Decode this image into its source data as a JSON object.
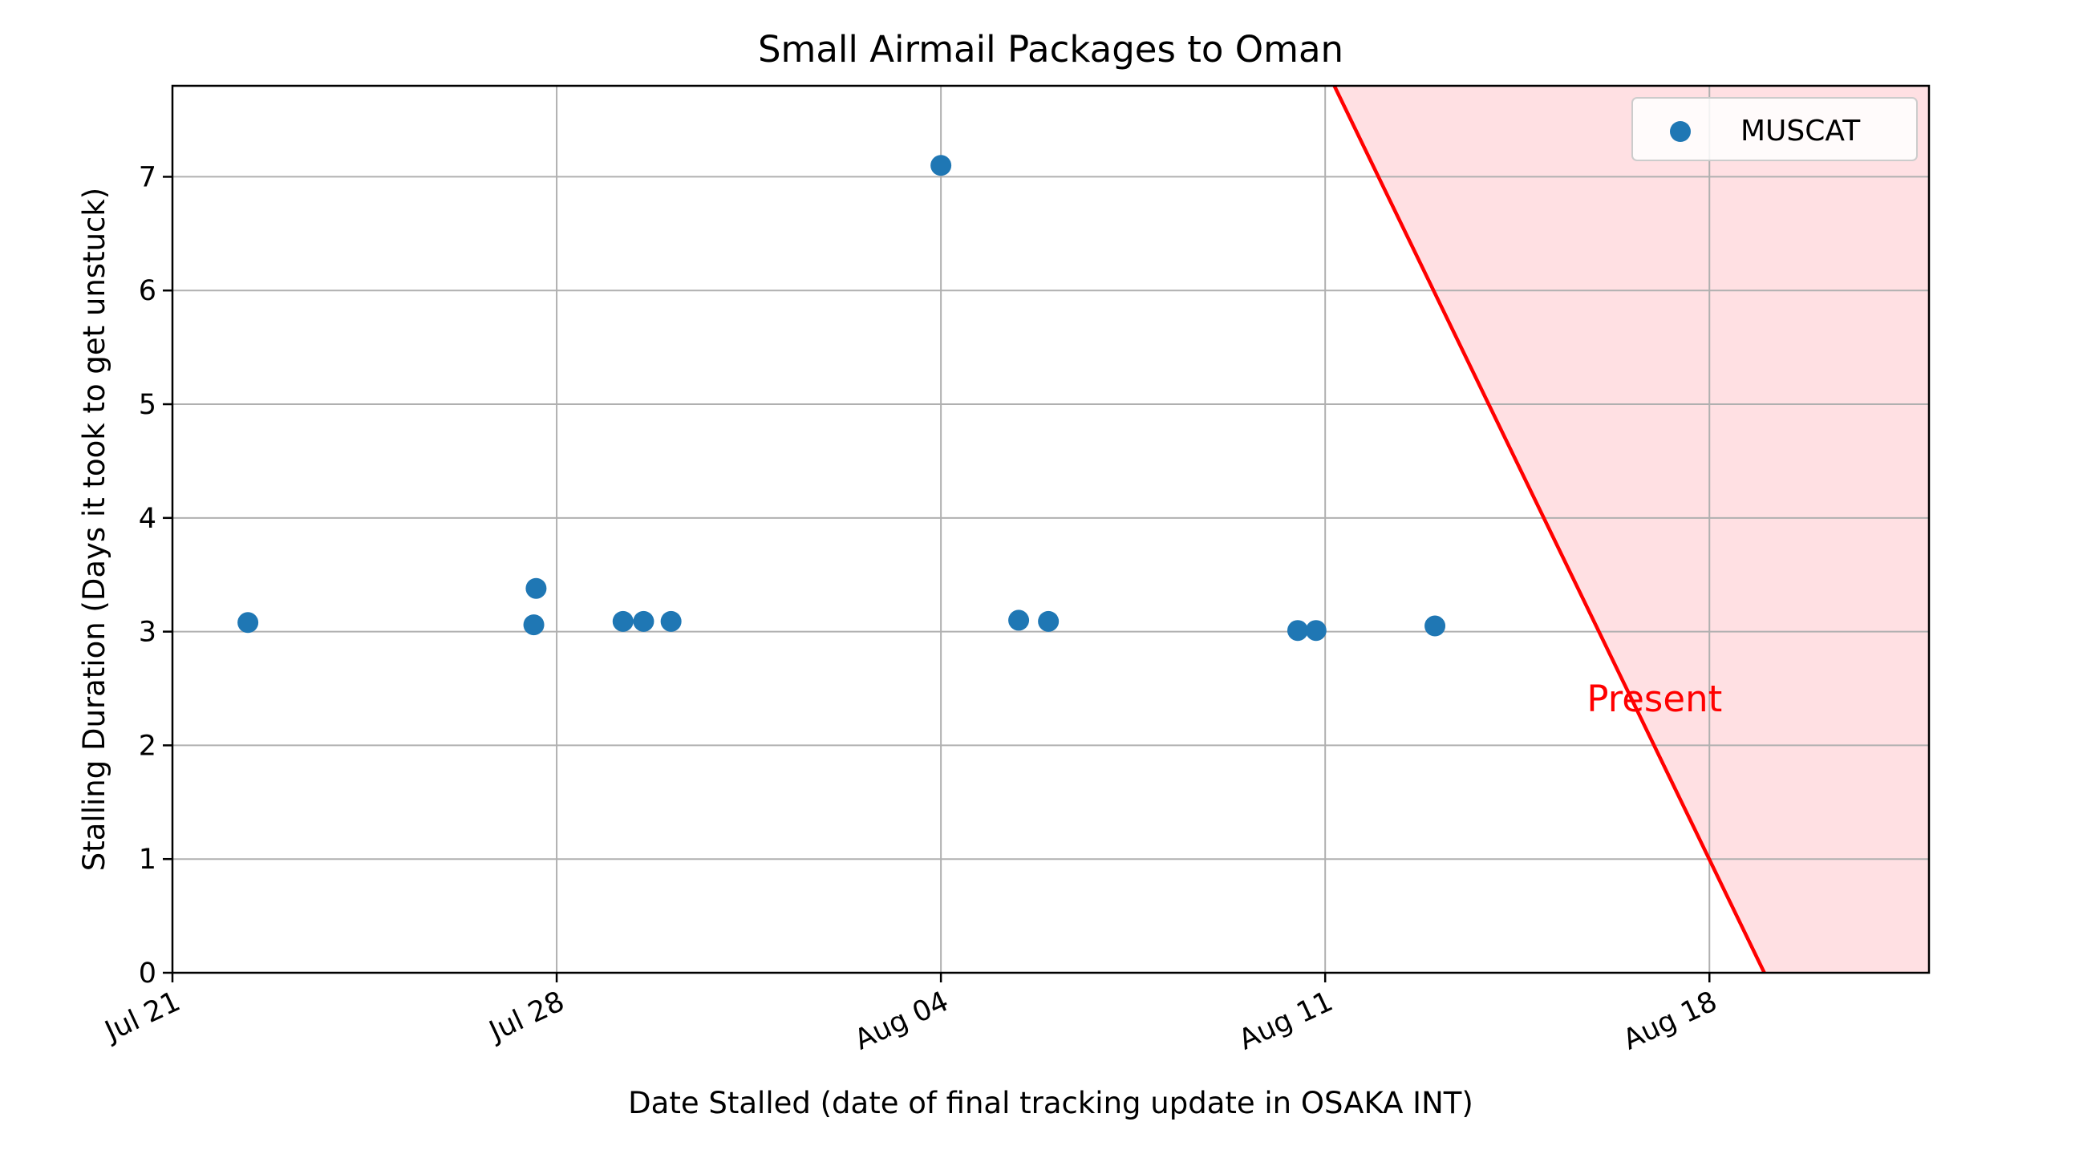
{
  "chart_data": {
    "type": "scatter",
    "title": "Small Airmail Packages to Oman",
    "xlabel": "Date Stalled (date of final tracking update in OSAKA INT)",
    "ylabel": "Stalling Duration (Days it took to get unstuck)",
    "x_axis_type": "date",
    "xlim": [
      "2020-07-21",
      "2020-08-22"
    ],
    "ylim": [
      0,
      7.8
    ],
    "x_ticks": [
      {
        "date": "2020-07-21",
        "label": "Jul 21"
      },
      {
        "date": "2020-07-28",
        "label": "Jul 28"
      },
      {
        "date": "2020-08-04",
        "label": "Aug 04"
      },
      {
        "date": "2020-08-11",
        "label": "Aug 11"
      },
      {
        "date": "2020-08-18",
        "label": "Aug 18"
      }
    ],
    "y_ticks": [
      0,
      1,
      2,
      3,
      4,
      5,
      6,
      7
    ],
    "grid": true,
    "legend_position": "upper-right",
    "series": [
      {
        "name": "MUSCAT",
        "color": "#1f77b4",
        "points": [
          {
            "x": "2020-07-22 09:00",
            "y": 3.08
          },
          {
            "x": "2020-07-27 14:00",
            "y": 3.06
          },
          {
            "x": "2020-07-27 15:00",
            "y": 3.38
          },
          {
            "x": "2020-07-29 05:00",
            "y": 3.09
          },
          {
            "x": "2020-07-29 14:00",
            "y": 3.09
          },
          {
            "x": "2020-07-30 02:00",
            "y": 3.09
          },
          {
            "x": "2020-08-04 00:00",
            "y": 7.1
          },
          {
            "x": "2020-08-05 10:00",
            "y": 3.1
          },
          {
            "x": "2020-08-05 23:00",
            "y": 3.09
          },
          {
            "x": "2020-08-10 12:00",
            "y": 3.01
          },
          {
            "x": "2020-08-10 20:00",
            "y": 3.01
          },
          {
            "x": "2020-08-13 00:00",
            "y": 3.05
          }
        ]
      }
    ],
    "present_region": {
      "label": "Present",
      "color": "#ff0000",
      "fill_color": "#ffe0e3",
      "line_from": {
        "x": "2020-08-11 04:00",
        "y": 7.8
      },
      "line_to": {
        "x": "2020-08-19 00:00",
        "y": 0
      },
      "label_anchor": {
        "x": "2020-08-17 00:00",
        "y": 2.3
      }
    }
  }
}
